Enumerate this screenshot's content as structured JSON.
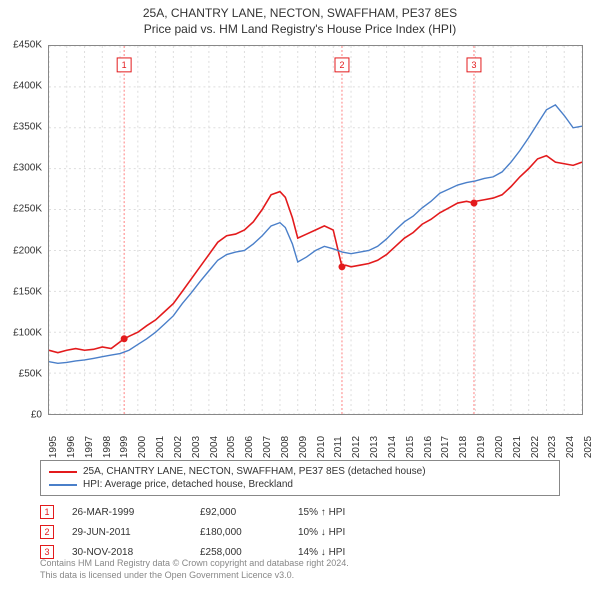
{
  "title1": "25A, CHANTRY LANE, NECTON, SWAFFHAM, PE37 8ES",
  "title2": "Price paid vs. HM Land Registry's House Price Index (HPI)",
  "chart": {
    "type": "line",
    "background_color": "#ffffff",
    "grid_color": "#dddddd",
    "grid_dash": "2,3",
    "border_color": "#888888",
    "ylim": [
      0,
      450000
    ],
    "ytick_step": 50000,
    "y_labels": [
      "£0",
      "£50K",
      "£100K",
      "£150K",
      "£200K",
      "£250K",
      "£300K",
      "£350K",
      "£400K",
      "£450K"
    ],
    "xlim": [
      1995,
      2025
    ],
    "x_labels": [
      "1995",
      "1996",
      "1997",
      "1998",
      "1999",
      "2000",
      "2001",
      "2002",
      "2003",
      "2004",
      "2005",
      "2006",
      "2007",
      "2008",
      "2009",
      "2010",
      "2011",
      "2012",
      "2013",
      "2014",
      "2015",
      "2016",
      "2017",
      "2018",
      "2019",
      "2020",
      "2021",
      "2022",
      "2023",
      "2024",
      "2025"
    ],
    "label_fontsize": 10,
    "series": [
      {
        "name": "property",
        "color": "#e31a1c",
        "width": 1.6,
        "data": [
          [
            1995,
            78000
          ],
          [
            1995.5,
            75000
          ],
          [
            1996,
            78000
          ],
          [
            1996.5,
            80000
          ],
          [
            1997,
            78000
          ],
          [
            1997.5,
            79000
          ],
          [
            1998,
            82000
          ],
          [
            1998.5,
            80000
          ],
          [
            1999.23,
            92000
          ],
          [
            1999.5,
            95000
          ],
          [
            2000,
            100000
          ],
          [
            2000.5,
            108000
          ],
          [
            2001,
            115000
          ],
          [
            2001.5,
            125000
          ],
          [
            2002,
            135000
          ],
          [
            2002.5,
            150000
          ],
          [
            2003,
            165000
          ],
          [
            2003.5,
            180000
          ],
          [
            2004,
            195000
          ],
          [
            2004.5,
            210000
          ],
          [
            2005,
            218000
          ],
          [
            2005.5,
            220000
          ],
          [
            2006,
            225000
          ],
          [
            2006.5,
            235000
          ],
          [
            2007,
            250000
          ],
          [
            2007.5,
            268000
          ],
          [
            2008,
            272000
          ],
          [
            2008.3,
            265000
          ],
          [
            2008.7,
            240000
          ],
          [
            2009,
            215000
          ],
          [
            2009.5,
            220000
          ],
          [
            2010,
            225000
          ],
          [
            2010.5,
            230000
          ],
          [
            2011,
            225000
          ],
          [
            2011.49,
            180000
          ],
          [
            2011.7,
            182000
          ],
          [
            2012,
            180000
          ],
          [
            2012.5,
            182000
          ],
          [
            2013,
            184000
          ],
          [
            2013.5,
            188000
          ],
          [
            2014,
            195000
          ],
          [
            2014.5,
            205000
          ],
          [
            2015,
            215000
          ],
          [
            2015.5,
            222000
          ],
          [
            2016,
            232000
          ],
          [
            2016.5,
            238000
          ],
          [
            2017,
            246000
          ],
          [
            2017.5,
            252000
          ],
          [
            2018,
            258000
          ],
          [
            2018.5,
            260000
          ],
          [
            2018.92,
            258000
          ],
          [
            2019,
            260000
          ],
          [
            2019.5,
            262000
          ],
          [
            2020,
            264000
          ],
          [
            2020.5,
            268000
          ],
          [
            2021,
            278000
          ],
          [
            2021.5,
            290000
          ],
          [
            2022,
            300000
          ],
          [
            2022.5,
            312000
          ],
          [
            2023,
            316000
          ],
          [
            2023.5,
            308000
          ],
          [
            2024,
            306000
          ],
          [
            2024.5,
            304000
          ],
          [
            2025,
            308000
          ]
        ]
      },
      {
        "name": "hpi",
        "color": "#4a7fc9",
        "width": 1.4,
        "data": [
          [
            1995,
            64000
          ],
          [
            1995.5,
            62000
          ],
          [
            1996,
            63000
          ],
          [
            1996.5,
            65000
          ],
          [
            1997,
            66000
          ],
          [
            1997.5,
            68000
          ],
          [
            1998,
            70000
          ],
          [
            1998.5,
            72000
          ],
          [
            1999,
            74000
          ],
          [
            1999.5,
            78000
          ],
          [
            2000,
            85000
          ],
          [
            2000.5,
            92000
          ],
          [
            2001,
            100000
          ],
          [
            2001.5,
            110000
          ],
          [
            2002,
            120000
          ],
          [
            2002.5,
            135000
          ],
          [
            2003,
            148000
          ],
          [
            2003.5,
            162000
          ],
          [
            2004,
            175000
          ],
          [
            2004.5,
            188000
          ],
          [
            2005,
            195000
          ],
          [
            2005.5,
            198000
          ],
          [
            2006,
            200000
          ],
          [
            2006.5,
            208000
          ],
          [
            2007,
            218000
          ],
          [
            2007.5,
            230000
          ],
          [
            2008,
            234000
          ],
          [
            2008.3,
            228000
          ],
          [
            2008.7,
            208000
          ],
          [
            2009,
            186000
          ],
          [
            2009.5,
            192000
          ],
          [
            2010,
            200000
          ],
          [
            2010.5,
            205000
          ],
          [
            2011,
            202000
          ],
          [
            2011.5,
            198000
          ],
          [
            2012,
            196000
          ],
          [
            2012.5,
            198000
          ],
          [
            2013,
            200000
          ],
          [
            2013.5,
            205000
          ],
          [
            2014,
            214000
          ],
          [
            2014.5,
            225000
          ],
          [
            2015,
            235000
          ],
          [
            2015.5,
            242000
          ],
          [
            2016,
            252000
          ],
          [
            2016.5,
            260000
          ],
          [
            2017,
            270000
          ],
          [
            2017.5,
            275000
          ],
          [
            2018,
            280000
          ],
          [
            2018.5,
            283000
          ],
          [
            2019,
            285000
          ],
          [
            2019.5,
            288000
          ],
          [
            2020,
            290000
          ],
          [
            2020.5,
            296000
          ],
          [
            2021,
            308000
          ],
          [
            2021.5,
            322000
          ],
          [
            2022,
            338000
          ],
          [
            2022.5,
            355000
          ],
          [
            2023,
            372000
          ],
          [
            2023.5,
            378000
          ],
          [
            2024,
            365000
          ],
          [
            2024.5,
            350000
          ],
          [
            2025,
            352000
          ]
        ]
      }
    ],
    "markers": [
      {
        "n": 1,
        "x": 1999.23,
        "y": 92000,
        "color": "#e31a1c"
      },
      {
        "n": 2,
        "x": 2011.49,
        "y": 180000,
        "color": "#e31a1c"
      },
      {
        "n": 3,
        "x": 2018.92,
        "y": 258000,
        "color": "#e31a1c"
      }
    ],
    "marker_line_color": "#ff8080",
    "marker_line_dash": "2,2",
    "marker_radius": 3.5,
    "marker_label_box": {
      "w": 14,
      "h": 14,
      "border": "#e31a1c",
      "fill": "#ffffff",
      "text_color": "#e31a1c",
      "fontsize": 9
    },
    "marker_label_y_offset": 12
  },
  "legend": {
    "border_color": "#888888",
    "items": [
      {
        "color": "#e31a1c",
        "label": "25A, CHANTRY LANE, NECTON, SWAFFHAM, PE37 8ES (detached house)"
      },
      {
        "color": "#4a7fc9",
        "label": "HPI: Average price, detached house, Breckland"
      }
    ]
  },
  "trades": [
    {
      "n": "1",
      "date": "26-MAR-1999",
      "price": "£92,000",
      "pct": "15% ↑ HPI",
      "color": "#e31a1c"
    },
    {
      "n": "2",
      "date": "29-JUN-2011",
      "price": "£180,000",
      "pct": "10% ↓ HPI",
      "color": "#e31a1c"
    },
    {
      "n": "3",
      "date": "30-NOV-2018",
      "price": "£258,000",
      "pct": "14% ↓ HPI",
      "color": "#e31a1c"
    }
  ],
  "footer1": "Contains HM Land Registry data © Crown copyright and database right 2024.",
  "footer2": "This data is licensed under the Open Government Licence v3.0."
}
